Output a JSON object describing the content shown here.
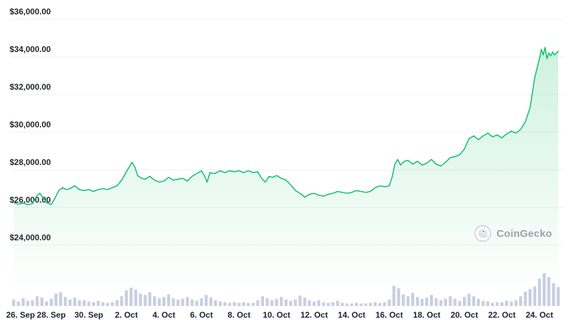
{
  "watermark": {
    "label": "CoinGecko"
  },
  "chart_data": {
    "type": "line",
    "currency": "USD",
    "grid": true,
    "legend": "none",
    "y_axis": {
      "min": 24000,
      "max": 36000,
      "ticks": [
        {
          "value": 36000,
          "label": "$36,000.00"
        },
        {
          "value": 34000,
          "label": "$34,000.00"
        },
        {
          "value": 32000,
          "label": "$32,000.00"
        },
        {
          "value": 30000,
          "label": "$30,000.00"
        },
        {
          "value": 28000,
          "label": "$28,000.00"
        },
        {
          "value": 26000,
          "label": "$26,000.00"
        },
        {
          "value": 24000,
          "label": "$24,000.00"
        }
      ]
    },
    "x_axis": {
      "min_day": 0,
      "max_day": 29,
      "ticks": [
        {
          "day": 0,
          "label": "26. Sep"
        },
        {
          "day": 2,
          "label": "28. Sep"
        },
        {
          "day": 4,
          "label": "30. Sep"
        },
        {
          "day": 6,
          "label": "2. Oct"
        },
        {
          "day": 8,
          "label": "4. Oct"
        },
        {
          "day": 10,
          "label": "6. Oct"
        },
        {
          "day": 12,
          "label": "8. Oct"
        },
        {
          "day": 14,
          "label": "10. Oct"
        },
        {
          "day": 16,
          "label": "12. Oct"
        },
        {
          "day": 18,
          "label": "14. Oct"
        },
        {
          "day": 20,
          "label": "16. Oct"
        },
        {
          "day": 22,
          "label": "18. Oct"
        },
        {
          "day": 24,
          "label": "20. Oct"
        },
        {
          "day": 26,
          "label": "22. Oct"
        },
        {
          "day": 28,
          "label": "24. Oct"
        }
      ]
    },
    "price_series": {
      "points": [
        [
          0,
          26250
        ],
        [
          0.25,
          26180
        ],
        [
          0.5,
          26230
        ],
        [
          0.75,
          26150
        ],
        [
          1,
          26200
        ],
        [
          1.25,
          26650
        ],
        [
          1.4,
          26750
        ],
        [
          1.6,
          26450
        ],
        [
          1.75,
          26250
        ],
        [
          2,
          26150
        ],
        [
          2.2,
          26500
        ],
        [
          2.4,
          26900
        ],
        [
          2.6,
          27050
        ],
        [
          2.8,
          26950
        ],
        [
          3,
          27000
        ],
        [
          3.25,
          27150
        ],
        [
          3.5,
          26950
        ],
        [
          3.75,
          26900
        ],
        [
          4,
          26950
        ],
        [
          4.25,
          26850
        ],
        [
          4.5,
          26950
        ],
        [
          4.75,
          27000
        ],
        [
          5,
          26950
        ],
        [
          5.25,
          27050
        ],
        [
          5.5,
          27150
        ],
        [
          5.75,
          27450
        ],
        [
          6,
          27900
        ],
        [
          6.15,
          28150
        ],
        [
          6.3,
          28400
        ],
        [
          6.45,
          28150
        ],
        [
          6.6,
          27700
        ],
        [
          6.8,
          27550
        ],
        [
          7,
          27500
        ],
        [
          7.25,
          27650
        ],
        [
          7.5,
          27450
        ],
        [
          7.75,
          27350
        ],
        [
          8,
          27400
        ],
        [
          8.25,
          27600
        ],
        [
          8.5,
          27450
        ],
        [
          8.75,
          27500
        ],
        [
          9,
          27550
        ],
        [
          9.25,
          27400
        ],
        [
          9.5,
          27650
        ],
        [
          9.75,
          27800
        ],
        [
          10,
          27950
        ],
        [
          10.15,
          27700
        ],
        [
          10.3,
          27350
        ],
        [
          10.45,
          27850
        ],
        [
          10.7,
          27800
        ],
        [
          11,
          27950
        ],
        [
          11.25,
          27850
        ],
        [
          11.5,
          27950
        ],
        [
          11.75,
          27900
        ],
        [
          12,
          27950
        ],
        [
          12.25,
          27850
        ],
        [
          12.5,
          27950
        ],
        [
          12.75,
          27850
        ],
        [
          13,
          27900
        ],
        [
          13.2,
          27550
        ],
        [
          13.4,
          27350
        ],
        [
          13.6,
          27650
        ],
        [
          13.8,
          27600
        ],
        [
          14,
          27700
        ],
        [
          14.25,
          27550
        ],
        [
          14.5,
          27450
        ],
        [
          14.75,
          27200
        ],
        [
          15,
          26900
        ],
        [
          15.25,
          26750
        ],
        [
          15.5,
          26550
        ],
        [
          15.75,
          26700
        ],
        [
          16,
          26750
        ],
        [
          16.25,
          26650
        ],
        [
          16.5,
          26600
        ],
        [
          16.75,
          26700
        ],
        [
          17,
          26750
        ],
        [
          17.25,
          26850
        ],
        [
          17.5,
          26800
        ],
        [
          17.75,
          26750
        ],
        [
          18,
          26800
        ],
        [
          18.25,
          26900
        ],
        [
          18.5,
          26850
        ],
        [
          18.75,
          26800
        ],
        [
          19,
          26850
        ],
        [
          19.25,
          27050
        ],
        [
          19.5,
          27150
        ],
        [
          19.75,
          27100
        ],
        [
          20,
          27150
        ],
        [
          20.15,
          27600
        ],
        [
          20.3,
          28300
        ],
        [
          20.45,
          28550
        ],
        [
          20.6,
          28250
        ],
        [
          20.8,
          28450
        ],
        [
          21,
          28500
        ],
        [
          21.25,
          28300
        ],
        [
          21.5,
          28450
        ],
        [
          21.75,
          28250
        ],
        [
          22,
          28350
        ],
        [
          22.25,
          28550
        ],
        [
          22.5,
          28300
        ],
        [
          22.75,
          28200
        ],
        [
          23,
          28400
        ],
        [
          23.25,
          28650
        ],
        [
          23.5,
          28700
        ],
        [
          23.75,
          28800
        ],
        [
          24,
          29100
        ],
        [
          24.25,
          29650
        ],
        [
          24.5,
          29800
        ],
        [
          24.75,
          29600
        ],
        [
          25,
          29800
        ],
        [
          25.25,
          29950
        ],
        [
          25.5,
          29750
        ],
        [
          25.75,
          29850
        ],
        [
          26,
          29700
        ],
        [
          26.25,
          29900
        ],
        [
          26.5,
          30050
        ],
        [
          26.75,
          29950
        ],
        [
          27,
          30150
        ],
        [
          27.25,
          30550
        ],
        [
          27.5,
          31300
        ],
        [
          27.75,
          32900
        ],
        [
          28,
          33900
        ],
        [
          28.1,
          34400
        ],
        [
          28.2,
          34100
        ],
        [
          28.3,
          34500
        ],
        [
          28.4,
          33900
        ],
        [
          28.5,
          34200
        ],
        [
          28.6,
          34050
        ],
        [
          28.7,
          34250
        ],
        [
          28.8,
          34100
        ],
        [
          28.9,
          34200
        ],
        [
          29,
          34300
        ]
      ]
    },
    "volume_series": {
      "type": "bar",
      "start_day": 0,
      "step_day": 0.25,
      "max": 100,
      "values": [
        20,
        14,
        24,
        16,
        18,
        30,
        26,
        14,
        22,
        38,
        42,
        28,
        20,
        26,
        18,
        18,
        14,
        12,
        16,
        12,
        10,
        12,
        18,
        30,
        48,
        56,
        50,
        38,
        34,
        42,
        30,
        24,
        28,
        36,
        24,
        20,
        22,
        28,
        20,
        16,
        24,
        34,
        26,
        18,
        14,
        12,
        10,
        12,
        10,
        12,
        10,
        10,
        18,
        30,
        24,
        18,
        22,
        28,
        20,
        16,
        20,
        32,
        26,
        18,
        14,
        18,
        12,
        10,
        12,
        16,
        10,
        8,
        8,
        10,
        8,
        8,
        10,
        12,
        10,
        12,
        20,
        62,
        54,
        36,
        30,
        40,
        28,
        22,
        26,
        34,
        24,
        18,
        22,
        30,
        22,
        16,
        28,
        38,
        30,
        22,
        16,
        14,
        10,
        12,
        12,
        16,
        14,
        18,
        30,
        44,
        52,
        60,
        84,
        100,
        88,
        70,
        58
      ]
    },
    "colors": {
      "line": "#16c173",
      "area_top": "rgba(34,197,110,0.22)",
      "area_bottom": "rgba(34,197,110,0)",
      "volume": "#c9cfe2",
      "grid": "#eef0f3",
      "axis_text": "#1e232d"
    }
  }
}
